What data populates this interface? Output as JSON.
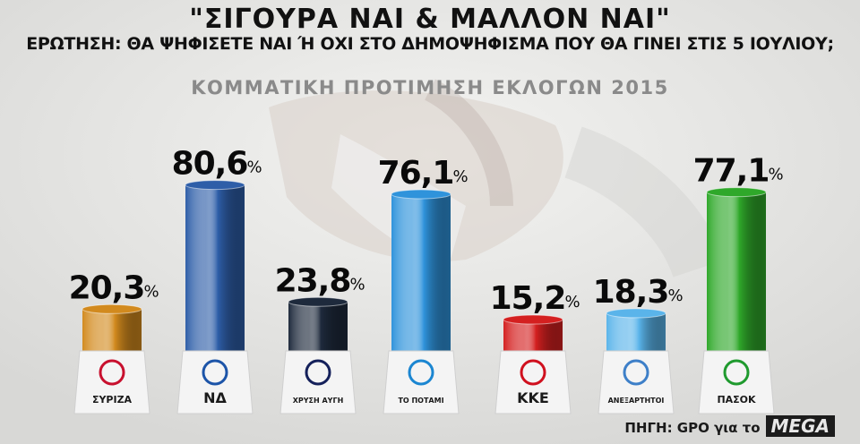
{
  "header": {
    "title": "\"ΣΙΓΟΥΡΑ ΝΑΙ & ΜΑΛΛΟΝ ΝΑΙ\"",
    "question": "ΕΡΩΤΗΣΗ: ΘΑ ΨΗΦΙΣΕΤΕ ΝΑΙ Ή ΟΧΙ ΣΤΟ ΔΗΜΟΨΗΦΙΣΜΑ ΠΟΥ ΘΑ ΓΙΝΕΙ ΣΤΙΣ 5 ΙΟΥΛΙΟΥ;",
    "subtitle": "ΚΟΜΜΑΤΙΚΗ ΠΡΟΤΙΜΗΣΗ ΕΚΛΟΓΩΝ 2015"
  },
  "source": {
    "text": "ΠΗΓΗ: GPO για το",
    "channel": "MEGA"
  },
  "chart_data": {
    "type": "bar",
    "value_suffix": "%",
    "ylim": [
      0,
      100
    ],
    "grid": false,
    "categories": [
      "ΣΥΡΙΖΑ",
      "ΝΔ",
      "ΧΡΥΣΗ ΑΥΓΗ",
      "ΤΟ ΠΟΤΑΜΙ",
      "ΚΚΕ",
      "ΑΝΕΞΑΡΤΗΤΟΙ ΕΛΛΗΝΕΣ",
      "ΠΑΣΟΚ"
    ],
    "display_values": [
      "20,3",
      "80,6",
      "23,8",
      "76,1",
      "15,2",
      "18,3",
      "77,1"
    ],
    "values": [
      20.3,
      80.6,
      23.8,
      76.1,
      15.2,
      18.3,
      77.1
    ],
    "colors": [
      "#d28a1e",
      "#2e5ea8",
      "#1e2a3c",
      "#2f93db",
      "#d42020",
      "#5ab4ea",
      "#2fa82a"
    ],
    "logo_colors": [
      "#c8102e",
      "#1c54a8",
      "#14205a",
      "#1b86d1",
      "#d0101e",
      "#3d7fc8",
      "#1f9a2e"
    ],
    "logo_texts": [
      "ΣΥΡΙΖΑ",
      "ΝΔ",
      "ΧΡΥΣΗ ΑΥΓΗ",
      "ΤΟ ΠΟΤΑΜΙ",
      "ΚΚΕ",
      "ΑΝΕΞΑΡΤΗΤΟΙ",
      "ΠΑΣΟΚ"
    ]
  }
}
